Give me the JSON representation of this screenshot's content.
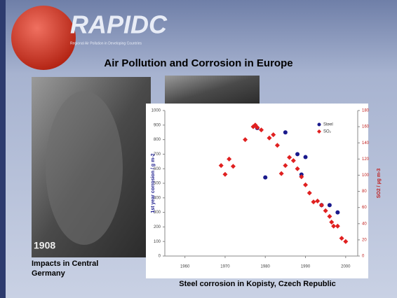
{
  "header": {
    "logo": "RAPIDC",
    "logo_subtitle": "Regional Air Pollution in Developing Countries",
    "title": "Air Pollution and Corrosion in Europe"
  },
  "photo": {
    "year": "1908",
    "caption": [
      "Impacts in Central",
      "Germany"
    ]
  },
  "chart_caption": "Steel corrosion in Kopisty, Czech Republic",
  "chart_data": {
    "type": "scatter",
    "y_label": "1st year corrosion / g m-2",
    "y2_label": "SO2 / µg m-3",
    "xlim": [
      1955,
      2003
    ],
    "xticks": [
      1960,
      1970,
      1980,
      1990,
      2000
    ],
    "ylim": [
      0,
      1000
    ],
    "yticks": [
      0,
      100,
      200,
      300,
      400,
      500,
      600,
      700,
      800,
      900,
      1000
    ],
    "y2lim": [
      0,
      180
    ],
    "y2ticks": [
      0,
      20,
      40,
      60,
      80,
      100,
      120,
      140,
      160,
      180
    ],
    "legend": "top-right",
    "series": [
      {
        "name": "Steel",
        "color": "#1a1a8c",
        "marker": "circle",
        "x": [
          1978,
          1980,
          1985,
          1988,
          1989,
          1990,
          1994,
          1996,
          1998
        ],
        "values": [
          880,
          540,
          850,
          700,
          560,
          680,
          350,
          350,
          300
        ]
      },
      {
        "name": "SO₂",
        "color": "#e02020",
        "marker": "diamond",
        "axis": "y2",
        "x": [
          1969,
          1970,
          1971,
          1972,
          1975,
          1977,
          1977.5,
          1978,
          1979,
          1981,
          1982,
          1983,
          1984,
          1985,
          1986,
          1987,
          1988,
          1989,
          1990,
          1991,
          1992,
          1993,
          1994,
          1995,
          1996,
          1996.5,
          1997,
          1998,
          1999,
          2000
        ],
        "values": [
          112,
          101,
          120,
          111,
          144,
          160,
          162,
          159,
          156,
          146,
          150,
          137,
          102,
          112,
          122,
          118,
          108,
          98,
          88,
          78,
          67,
          68,
          63,
          56,
          49,
          42,
          37,
          37,
          22,
          18
        ]
      }
    ]
  }
}
